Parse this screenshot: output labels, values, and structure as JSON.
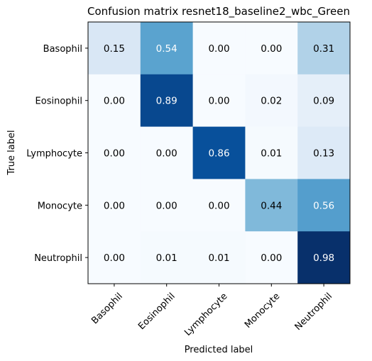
{
  "chart_data": {
    "type": "heatmap",
    "title": "Confusion matrix resnet18_baseline2_wbc_Green",
    "xlabel": "Predicted label",
    "ylabel": "True label",
    "x_categories": [
      "Basophil",
      "Eosinophil",
      "Lymphocyte",
      "Monocyte",
      "Neutrophil"
    ],
    "y_categories": [
      "Basophil",
      "Eosinophil",
      "Lymphocyte",
      "Monocyte",
      "Neutrophil"
    ],
    "values": [
      [
        0.15,
        0.54,
        0.0,
        0.0,
        0.31
      ],
      [
        0.0,
        0.89,
        0.0,
        0.02,
        0.09
      ],
      [
        0.0,
        0.0,
        0.86,
        0.01,
        0.13
      ],
      [
        0.0,
        0.0,
        0.0,
        0.44,
        0.56
      ],
      [
        0.0,
        0.01,
        0.01,
        0.0,
        0.98
      ]
    ],
    "value_labels": [
      [
        "0.15",
        "0.54",
        "0.00",
        "0.00",
        "0.31"
      ],
      [
        "0.00",
        "0.89",
        "0.00",
        "0.02",
        "0.09"
      ],
      [
        "0.00",
        "0.00",
        "0.86",
        "0.01",
        "0.13"
      ],
      [
        "0.00",
        "0.00",
        "0.00",
        "0.44",
        "0.56"
      ],
      [
        "0.00",
        "0.01",
        "0.01",
        "0.00",
        "0.98"
      ]
    ],
    "colormap": "Blues",
    "text_color_dark": "#000000",
    "text_color_light": "#ffffff"
  }
}
